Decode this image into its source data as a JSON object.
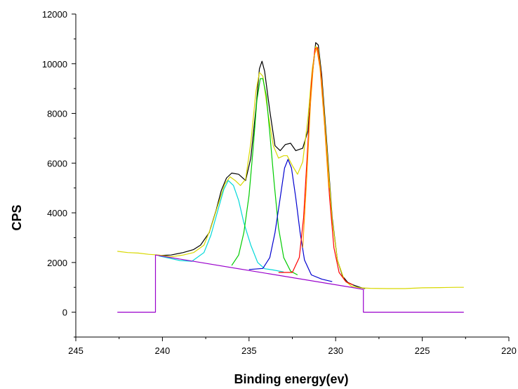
{
  "chart_data": {
    "type": "line",
    "title": "",
    "xlabel": "Binding energy(ev)",
    "ylabel": "CPS",
    "xlim": [
      245,
      220
    ],
    "ylim": [
      -1000,
      12000
    ],
    "x_reversed": true,
    "grid": false,
    "x_ticks": [
      "245",
      "240",
      "235",
      "230",
      "225",
      "220"
    ],
    "y_ticks": [
      "0",
      "2000",
      "4000",
      "6000",
      "8000",
      "10000",
      "12000"
    ],
    "series": [
      {
        "color": "#000000",
        "points": [
          [
            240.2,
            2280
          ],
          [
            239.5,
            2300
          ],
          [
            238.8,
            2400
          ],
          [
            238.2,
            2520
          ],
          [
            237.8,
            2700
          ],
          [
            237.3,
            3200
          ],
          [
            236.9,
            4100
          ],
          [
            236.6,
            4900
          ],
          [
            236.3,
            5400
          ],
          [
            236.0,
            5600
          ],
          [
            235.6,
            5550
          ],
          [
            235.2,
            5300
          ],
          [
            234.9,
            6200
          ],
          [
            234.6,
            8200
          ],
          [
            234.4,
            9800
          ],
          [
            234.25,
            10100
          ],
          [
            234.1,
            9700
          ],
          [
            233.8,
            8100
          ],
          [
            233.5,
            6700
          ],
          [
            233.2,
            6500
          ],
          [
            232.9,
            6750
          ],
          [
            232.6,
            6800
          ],
          [
            232.3,
            6500
          ],
          [
            231.9,
            6600
          ],
          [
            231.6,
            7300
          ],
          [
            231.35,
            9500
          ],
          [
            231.15,
            10850
          ],
          [
            231.0,
            10750
          ],
          [
            230.8,
            9500
          ],
          [
            230.5,
            6700
          ],
          [
            230.2,
            3800
          ],
          [
            229.9,
            2100
          ],
          [
            229.6,
            1450
          ],
          [
            229.3,
            1200
          ],
          [
            229.0,
            1100
          ],
          [
            228.6,
            1000
          ],
          [
            228.3,
            950
          ]
        ]
      },
      {
        "color": "#d8d800",
        "points": [
          [
            242.6,
            2450
          ],
          [
            242.0,
            2400
          ],
          [
            241.4,
            2380
          ],
          [
            240.8,
            2330
          ],
          [
            240.2,
            2300
          ],
          [
            239.5,
            2230
          ],
          [
            238.8,
            2300
          ],
          [
            238.2,
            2400
          ],
          [
            237.6,
            2700
          ],
          [
            237.2,
            3400
          ],
          [
            236.8,
            4300
          ],
          [
            236.4,
            5150
          ],
          [
            236.1,
            5450
          ],
          [
            235.8,
            5300
          ],
          [
            235.5,
            5100
          ],
          [
            235.2,
            5350
          ],
          [
            234.9,
            6800
          ],
          [
            234.6,
            8900
          ],
          [
            234.4,
            9650
          ],
          [
            234.2,
            9500
          ],
          [
            233.9,
            8000
          ],
          [
            233.6,
            6700
          ],
          [
            233.3,
            6200
          ],
          [
            233.0,
            6300
          ],
          [
            232.8,
            6300
          ],
          [
            232.5,
            5900
          ],
          [
            232.2,
            5550
          ],
          [
            231.9,
            6050
          ],
          [
            231.6,
            7800
          ],
          [
            231.35,
            9800
          ],
          [
            231.15,
            10700
          ],
          [
            231.0,
            10600
          ],
          [
            230.8,
            9300
          ],
          [
            230.5,
            6500
          ],
          [
            230.2,
            3700
          ],
          [
            229.9,
            2100
          ],
          [
            229.5,
            1300
          ],
          [
            229.1,
            1050
          ],
          [
            228.6,
            980
          ],
          [
            228.0,
            960
          ],
          [
            227.0,
            950
          ],
          [
            226.0,
            950
          ],
          [
            225.0,
            980
          ],
          [
            224.0,
            990
          ],
          [
            223.0,
            1000
          ],
          [
            222.6,
            1000
          ]
        ]
      },
      {
        "color": "#00d8d8",
        "points": [
          [
            240.2,
            2260
          ],
          [
            239.0,
            2080
          ],
          [
            238.3,
            2050
          ],
          [
            237.6,
            2400
          ],
          [
            237.2,
            3100
          ],
          [
            236.8,
            4100
          ],
          [
            236.45,
            4950
          ],
          [
            236.2,
            5300
          ],
          [
            235.9,
            5100
          ],
          [
            235.6,
            4500
          ],
          [
            235.3,
            3600
          ],
          [
            234.9,
            2700
          ],
          [
            234.5,
            2000
          ],
          [
            234.1,
            1750
          ],
          [
            233.6,
            1700
          ],
          [
            233.0,
            1620
          ]
        ]
      },
      {
        "color": "#00cc00",
        "points": [
          [
            236.0,
            1880
          ],
          [
            235.6,
            2300
          ],
          [
            235.3,
            3200
          ],
          [
            235.0,
            4700
          ],
          [
            234.75,
            6700
          ],
          [
            234.55,
            8500
          ],
          [
            234.35,
            9400
          ],
          [
            234.2,
            9400
          ],
          [
            234.0,
            8700
          ],
          [
            233.8,
            7200
          ],
          [
            233.55,
            5200
          ],
          [
            233.3,
            3400
          ],
          [
            233.0,
            2200
          ],
          [
            232.6,
            1650
          ],
          [
            232.2,
            1500
          ]
        ]
      },
      {
        "color": "#0000d0",
        "points": [
          [
            235.0,
            1720
          ],
          [
            234.2,
            1760
          ],
          [
            233.8,
            2200
          ],
          [
            233.5,
            3200
          ],
          [
            233.2,
            4600
          ],
          [
            232.95,
            5800
          ],
          [
            232.75,
            6150
          ],
          [
            232.55,
            5800
          ],
          [
            232.3,
            4600
          ],
          [
            232.05,
            3200
          ],
          [
            231.8,
            2100
          ],
          [
            231.4,
            1500
          ],
          [
            230.8,
            1330
          ],
          [
            230.2,
            1230
          ]
        ]
      },
      {
        "color": "#ff0000",
        "points": [
          [
            233.3,
            1600
          ],
          [
            232.5,
            1600
          ],
          [
            232.1,
            2200
          ],
          [
            231.85,
            3800
          ],
          [
            231.6,
            6800
          ],
          [
            231.4,
            9200
          ],
          [
            231.2,
            10600
          ],
          [
            231.05,
            10650
          ],
          [
            230.85,
            9600
          ],
          [
            230.6,
            7200
          ],
          [
            230.35,
            4600
          ],
          [
            230.1,
            2600
          ],
          [
            229.8,
            1600
          ],
          [
            229.4,
            1220
          ],
          [
            229.0,
            1100
          ]
        ]
      },
      {
        "color": "#ff9900",
        "points": [
          [
            231.9,
            2600
          ],
          [
            231.7,
            5000
          ],
          [
            231.45,
            8400
          ],
          [
            231.25,
            10300
          ],
          [
            231.1,
            10650
          ],
          [
            230.9,
            9800
          ],
          [
            230.65,
            7600
          ],
          [
            230.4,
            5000
          ]
        ]
      },
      {
        "color": "#9900cc",
        "points": [
          [
            242.6,
            0
          ],
          [
            240.4,
            0
          ],
          [
            240.4,
            2300
          ],
          [
            228.4,
            920
          ],
          [
            228.4,
            0
          ],
          [
            222.6,
            0
          ]
        ]
      }
    ]
  }
}
